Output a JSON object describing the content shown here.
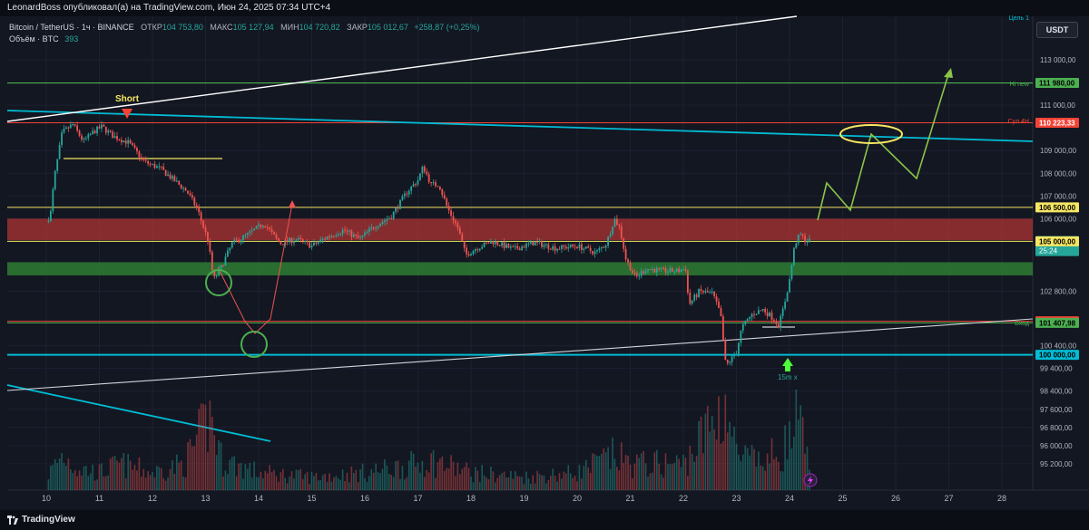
{
  "header": {
    "publisher_line": "LeonardBoss опубликовал(а) на TradingView.com, Июн 24, 2025 07:34 UTC+4"
  },
  "legend": {
    "symbol": "Bitcoin / TetherUS · 1ч · BINANCE",
    "open_key": "ОТКР",
    "open_val": "104 753,80",
    "high_key": "МАКС",
    "high_val": "105 127,94",
    "low_key": "МИН",
    "low_val": "104 720,82",
    "close_key": "ЗАКР",
    "close_val": "105 012,67",
    "change": "+258,87 (+0,25%)",
    "volume_label": "Объём · BTC",
    "volume_val": "393"
  },
  "currency": "USDT",
  "footer": {
    "brand": "TradingView"
  },
  "colors": {
    "background": "#131722",
    "up": "#26a69a",
    "down": "#ef5350",
    "resistance_zone": "#a83232",
    "support_zone": "#2e7d32",
    "cyan": "#00bcd4",
    "yellow": "#f5e663",
    "green_line": "#4caf50",
    "red_line": "#f44336",
    "projection": "#8bc34a"
  },
  "chart_data": {
    "type": "candlestick",
    "x_axis_labels": [
      "10",
      "11",
      "12",
      "13",
      "14",
      "15",
      "16",
      "17",
      "18",
      "19",
      "20",
      "21",
      "22",
      "23",
      "24",
      "25",
      "26",
      "27",
      "28"
    ],
    "y_ticks": [
      {
        "value": 113000,
        "label": "113 000,00"
      },
      {
        "value": 111000,
        "label": "111 000,00"
      },
      {
        "value": 109000,
        "label": "109 000,00"
      },
      {
        "value": 108000,
        "label": "108 000,00"
      },
      {
        "value": 107000,
        "label": "107 000,00"
      },
      {
        "value": 106000,
        "label": "106 000,00"
      },
      {
        "value": 102800,
        "label": "102 800,00"
      },
      {
        "value": 100400,
        "label": "100 400,00"
      },
      {
        "value": 99400,
        "label": "99 400,00"
      },
      {
        "value": 98400,
        "label": "98 400,00"
      },
      {
        "value": 97600,
        "label": "97 600,00"
      },
      {
        "value": 96800,
        "label": "96 800,00"
      },
      {
        "value": 96000,
        "label": "96 000,00"
      },
      {
        "value": 95200,
        "label": "95 200,00"
      }
    ],
    "price_markers": [
      {
        "label": "111 980,00",
        "color": "#4caf50",
        "text_color": "#000000"
      },
      {
        "label": "110 223,33",
        "color": "#f44336",
        "text_color": "#ffffff"
      },
      {
        "label": "106 500,00",
        "color": "#f5e663",
        "text_color": "#000000"
      },
      {
        "label": "105 012,67",
        "sub": "25:24",
        "color": "#26a69a",
        "text_color": "#ffffff"
      },
      {
        "label": "105 000,00",
        "color": "#f5e663",
        "text_color": "#000000"
      },
      {
        "label": "101 478,23",
        "color": "#f44336",
        "text_color": "#ffffff"
      },
      {
        "label": "101 407,98",
        "color": "#4caf50",
        "text_color": "#000000"
      },
      {
        "label": "100 000,00",
        "color": "#00bcd4",
        "text_color": "#000000"
      }
    ],
    "level_tags": [
      {
        "text": "Цель 1",
        "color": "#00bcd4"
      },
      {
        "text": "Hi new",
        "color": "#4caf50"
      },
      {
        "text": "Сул 4Н",
        "color": "#f44336"
      },
      {
        "text": "Вход",
        "color": "#4caf50"
      }
    ],
    "annotations": [
      {
        "text": "Short",
        "color": "#f5e663"
      },
      {
        "text": "15m x",
        "color": "#26a69a"
      }
    ],
    "price_path": [
      [
        0,
        105850
      ],
      [
        0.08,
        106200
      ],
      [
        0.15,
        107800
      ],
      [
        0.3,
        109800
      ],
      [
        0.5,
        110150
      ],
      [
        0.7,
        109400
      ],
      [
        0.9,
        109850
      ],
      [
        1.05,
        110050
      ],
      [
        1.25,
        109650
      ],
      [
        1.55,
        109350
      ],
      [
        1.85,
        108500
      ],
      [
        2.15,
        108200
      ],
      [
        2.45,
        107600
      ],
      [
        2.65,
        107200
      ],
      [
        2.85,
        106400
      ],
      [
        3.05,
        105000
      ],
      [
        3.15,
        103300
      ],
      [
        3.28,
        103800
      ],
      [
        3.5,
        104900
      ],
      [
        3.8,
        105300
      ],
      [
        4.1,
        105800
      ],
      [
        4.4,
        104900
      ],
      [
        4.7,
        105100
      ],
      [
        5.0,
        104800
      ],
      [
        5.3,
        105200
      ],
      [
        5.6,
        105500
      ],
      [
        5.9,
        105100
      ],
      [
        6.2,
        105700
      ],
      [
        6.5,
        106100
      ],
      [
        6.8,
        107200
      ],
      [
        7.0,
        107700
      ],
      [
        7.1,
        108300
      ],
      [
        7.25,
        107500
      ],
      [
        7.4,
        107500
      ],
      [
        7.55,
        106500
      ],
      [
        7.75,
        105600
      ],
      [
        7.9,
        104400
      ],
      [
        8.1,
        104700
      ],
      [
        8.4,
        105000
      ],
      [
        8.8,
        104650
      ],
      [
        9.2,
        104950
      ],
      [
        9.6,
        104700
      ],
      [
        10.0,
        104800
      ],
      [
        10.35,
        104500
      ],
      [
        10.55,
        104900
      ],
      [
        10.7,
        106000
      ],
      [
        10.8,
        105600
      ],
      [
        10.92,
        104200
      ],
      [
        11.1,
        103400
      ],
      [
        11.3,
        103800
      ],
      [
        11.6,
        103700
      ],
      [
        11.9,
        103700
      ],
      [
        12.05,
        103800
      ],
      [
        12.1,
        102200
      ],
      [
        12.3,
        102800
      ],
      [
        12.55,
        102700
      ],
      [
        12.7,
        101800
      ],
      [
        12.8,
        99500
      ],
      [
        12.9,
        99800
      ],
      [
        13.0,
        100100
      ],
      [
        13.1,
        101200
      ],
      [
        13.3,
        101800
      ],
      [
        13.5,
        102000
      ],
      [
        13.65,
        101700
      ],
      [
        13.8,
        101300
      ],
      [
        13.9,
        102200
      ],
      [
        14.0,
        103300
      ],
      [
        14.1,
        104900
      ],
      [
        14.2,
        105300
      ],
      [
        14.3,
        105050
      ],
      [
        14.4,
        105000
      ]
    ],
    "volume_path": [
      [
        0,
        0.15
      ],
      [
        0.3,
        0.4
      ],
      [
        0.6,
        0.25
      ],
      [
        1.0,
        0.2
      ],
      [
        1.4,
        0.3
      ],
      [
        2.0,
        0.2
      ],
      [
        2.6,
        0.3
      ],
      [
        3.1,
        0.85
      ],
      [
        3.3,
        0.35
      ],
      [
        4.0,
        0.2
      ],
      [
        5.0,
        0.15
      ],
      [
        6.0,
        0.2
      ],
      [
        7.0,
        0.3
      ],
      [
        7.2,
        0.35
      ],
      [
        8.0,
        0.2
      ],
      [
        9.0,
        0.15
      ],
      [
        10.0,
        0.2
      ],
      [
        10.7,
        0.4
      ],
      [
        11.0,
        0.3
      ],
      [
        12.0,
        0.3
      ],
      [
        12.8,
        1.0
      ],
      [
        13.0,
        0.4
      ],
      [
        13.5,
        0.3
      ],
      [
        14.0,
        0.55
      ],
      [
        14.15,
        0.8
      ],
      [
        14.4,
        0.2
      ]
    ]
  }
}
